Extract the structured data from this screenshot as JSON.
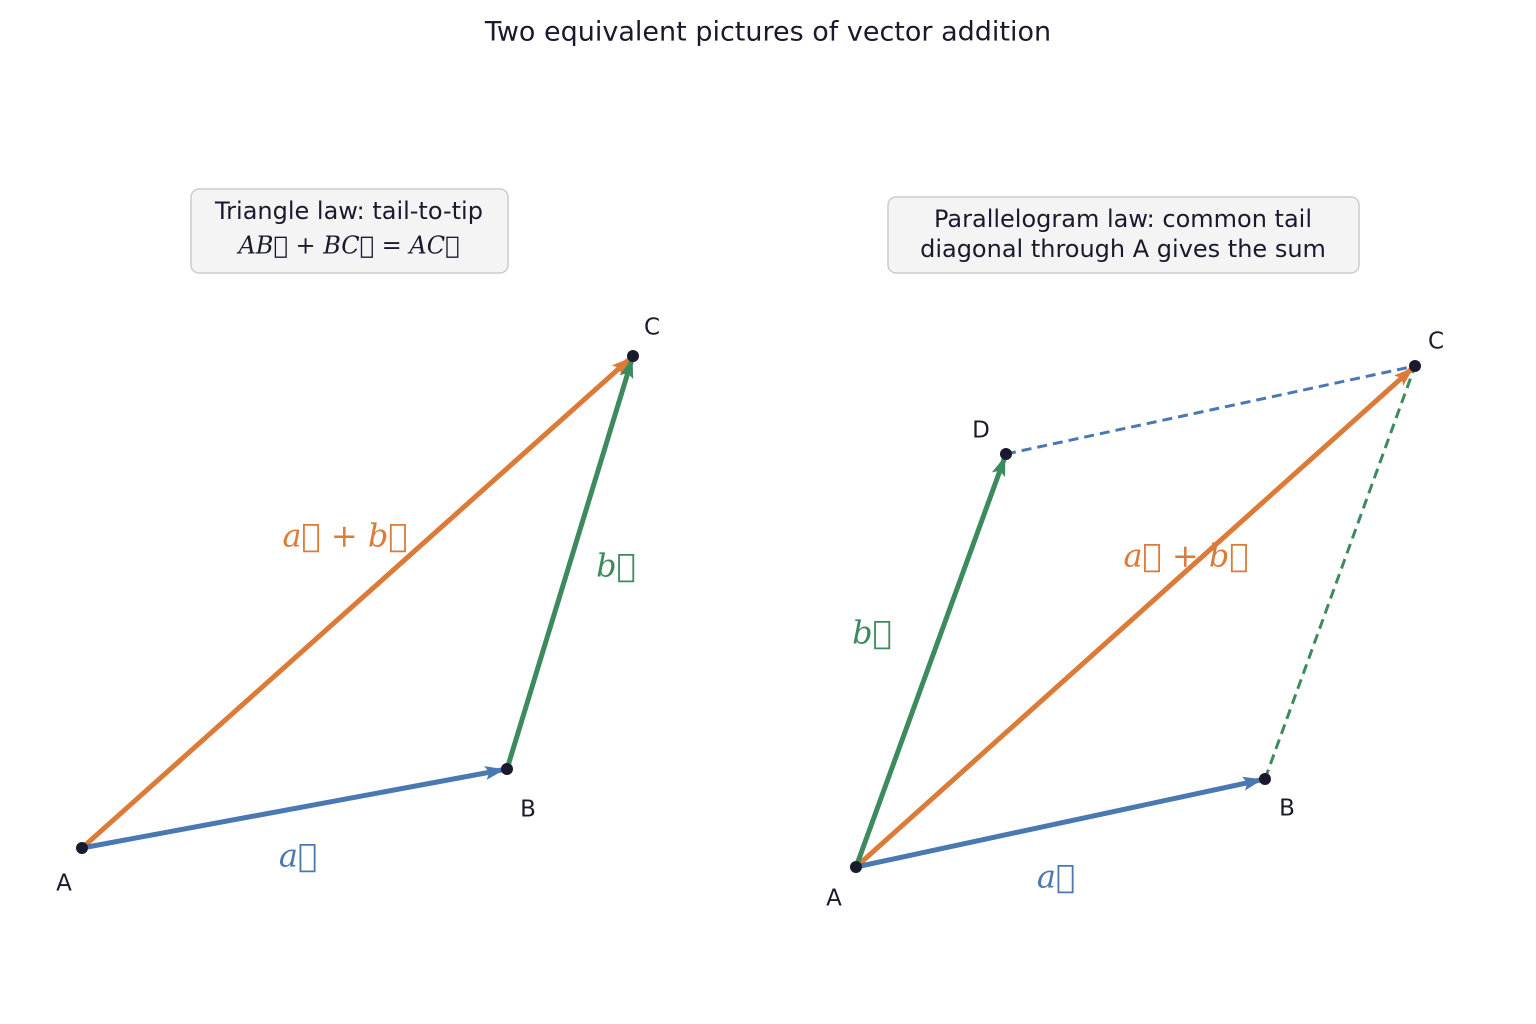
{
  "title": "Two equivalent pictures of vector addition",
  "panels": [
    {
      "box": [
        "Triangle law: tail-to-tip",
        "AB⃗ + BC⃗ = AC⃗"
      ],
      "points": [
        "A",
        "B",
        "C"
      ],
      "vectors": [
        "a⃗",
        "b⃗",
        "a⃗ + b⃗"
      ]
    },
    {
      "box": [
        "Parallelogram law: common tail",
        "diagonal through A gives the sum"
      ],
      "points": [
        "A",
        "B",
        "C",
        "D"
      ],
      "vectors": [
        "a⃗",
        "b⃗",
        "a⃗ + b⃗"
      ]
    }
  ]
}
